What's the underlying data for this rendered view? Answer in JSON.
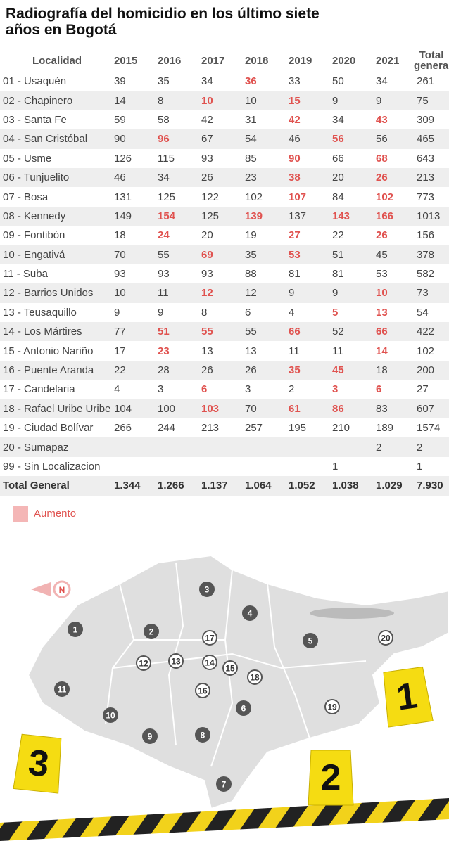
{
  "title": "Radiografía del homicidio en los último siete años en Bogotá",
  "table": {
    "header": [
      "Localidad",
      "2015",
      "2016",
      "2017",
      "2018",
      "2019",
      "2020",
      "2021",
      "Total general"
    ],
    "rows": [
      {
        "name": "01 - Usaquén",
        "values": [
          "39",
          "35",
          "34",
          "36",
          "33",
          "50",
          "34",
          "261"
        ],
        "increase": [
          false,
          false,
          false,
          true,
          false,
          false,
          false,
          false
        ]
      },
      {
        "name": "02 - Chapinero",
        "values": [
          "14",
          "8",
          "10",
          "10",
          "15",
          "9",
          "9",
          "75"
        ],
        "increase": [
          false,
          false,
          true,
          false,
          true,
          false,
          false,
          false
        ]
      },
      {
        "name": "03 - Santa Fe",
        "values": [
          "59",
          "58",
          "42",
          "31",
          "42",
          "34",
          "43",
          "309"
        ],
        "increase": [
          false,
          false,
          false,
          false,
          true,
          false,
          true,
          false
        ]
      },
      {
        "name": "04 - San Cristóbal",
        "values": [
          "90",
          "96",
          "67",
          "54",
          "46",
          "56",
          "56",
          "465"
        ],
        "increase": [
          false,
          true,
          false,
          false,
          false,
          true,
          false,
          false
        ]
      },
      {
        "name": "05 - Usme",
        "values": [
          "126",
          "115",
          "93",
          "85",
          "90",
          "66",
          "68",
          "643"
        ],
        "increase": [
          false,
          false,
          false,
          false,
          true,
          false,
          true,
          false
        ]
      },
      {
        "name": "06 - Tunjuelito",
        "values": [
          "46",
          "34",
          "26",
          "23",
          "38",
          "20",
          "26",
          "213"
        ],
        "increase": [
          false,
          false,
          false,
          false,
          true,
          false,
          true,
          false
        ]
      },
      {
        "name": "07 - Bosa",
        "values": [
          "131",
          "125",
          "122",
          "102",
          "107",
          "84",
          "102",
          "773"
        ],
        "increase": [
          false,
          false,
          false,
          false,
          true,
          false,
          true,
          false
        ]
      },
      {
        "name": "08 - Kennedy",
        "values": [
          "149",
          "154",
          "125",
          "139",
          "137",
          "143",
          "166",
          "1013"
        ],
        "increase": [
          false,
          true,
          false,
          true,
          false,
          true,
          true,
          false
        ]
      },
      {
        "name": "09 - Fontibón",
        "values": [
          "18",
          "24",
          "20",
          "19",
          "27",
          "22",
          "26",
          "156"
        ],
        "increase": [
          false,
          true,
          false,
          false,
          true,
          false,
          true,
          false
        ]
      },
      {
        "name": "10 - Engativá",
        "values": [
          "70",
          "55",
          "69",
          "35",
          "53",
          "51",
          "45",
          "378"
        ],
        "increase": [
          false,
          false,
          true,
          false,
          true,
          false,
          false,
          false
        ]
      },
      {
        "name": "11 - Suba",
        "values": [
          "93",
          "93",
          "93",
          "88",
          "81",
          "81",
          "53",
          "582"
        ],
        "increase": [
          false,
          false,
          false,
          false,
          false,
          false,
          false,
          false
        ]
      },
      {
        "name": "12 - Barrios Unidos",
        "values": [
          "10",
          "11",
          "12",
          "12",
          "9",
          "9",
          "10",
          "73"
        ],
        "increase": [
          false,
          false,
          true,
          false,
          false,
          false,
          true,
          false
        ]
      },
      {
        "name": "13 - Teusaquillo",
        "values": [
          "9",
          "9",
          "8",
          "6",
          "4",
          "5",
          "13",
          "54"
        ],
        "increase": [
          false,
          false,
          false,
          false,
          false,
          true,
          true,
          false
        ]
      },
      {
        "name": "14 - Los Mártires",
        "values": [
          "77",
          "51",
          "55",
          "55",
          "66",
          "52",
          "66",
          "422"
        ],
        "increase": [
          false,
          true,
          true,
          false,
          true,
          false,
          true,
          false
        ]
      },
      {
        "name": "15 - Antonio Nariño",
        "values": [
          "17",
          "23",
          "13",
          "13",
          "11",
          "11",
          "14",
          "102"
        ],
        "increase": [
          false,
          true,
          false,
          false,
          false,
          false,
          true,
          false
        ]
      },
      {
        "name": "16 - Puente Aranda",
        "values": [
          "22",
          "28",
          "26",
          "26",
          "35",
          "45",
          "18",
          "200"
        ],
        "increase": [
          false,
          false,
          false,
          false,
          true,
          true,
          false,
          false
        ]
      },
      {
        "name": "17 - Candelaria",
        "values": [
          "4",
          "3",
          "6",
          "3",
          "2",
          "3",
          "6",
          "27"
        ],
        "increase": [
          false,
          false,
          true,
          false,
          false,
          true,
          true,
          false
        ]
      },
      {
        "name": "18 - Rafael Uribe Uribe",
        "values": [
          "104",
          "100",
          "103",
          "70",
          "61",
          "86",
          "83",
          "607"
        ],
        "increase": [
          false,
          false,
          true,
          false,
          true,
          true,
          false,
          false
        ]
      },
      {
        "name": "19 - Ciudad Bolívar",
        "values": [
          "266",
          "244",
          "213",
          "257",
          "195",
          "210",
          "189",
          "1574"
        ],
        "increase": [
          false,
          false,
          false,
          false,
          false,
          false,
          false,
          false
        ]
      },
      {
        "name": "20 - Sumapaz",
        "values": [
          null,
          null,
          null,
          null,
          null,
          null,
          "2",
          "2"
        ],
        "increase": [
          false,
          false,
          false,
          false,
          false,
          false,
          false,
          false
        ]
      },
      {
        "name": "99 - Sin Localizacion",
        "values": [
          null,
          null,
          null,
          null,
          null,
          "1",
          null,
          "1"
        ],
        "increase": [
          false,
          false,
          false,
          false,
          false,
          false,
          false,
          false
        ]
      }
    ],
    "total": {
      "name": "Total General",
      "values": [
        "1.344",
        "1.266",
        "1.137",
        "1.064",
        "1.052",
        "1.038",
        "1.029",
        "7.930"
      ]
    }
  },
  "legend": {
    "label": "Aumento",
    "color": "#f4b6b6"
  },
  "map": {
    "compass": "N",
    "labels": [
      "1",
      "2",
      "3",
      "4",
      "5",
      "6",
      "7",
      "8",
      "9",
      "10",
      "11",
      "12",
      "13",
      "14",
      "15",
      "16",
      "17",
      "18",
      "19",
      "20"
    ],
    "markers": [
      "1",
      "2",
      "3"
    ]
  }
}
